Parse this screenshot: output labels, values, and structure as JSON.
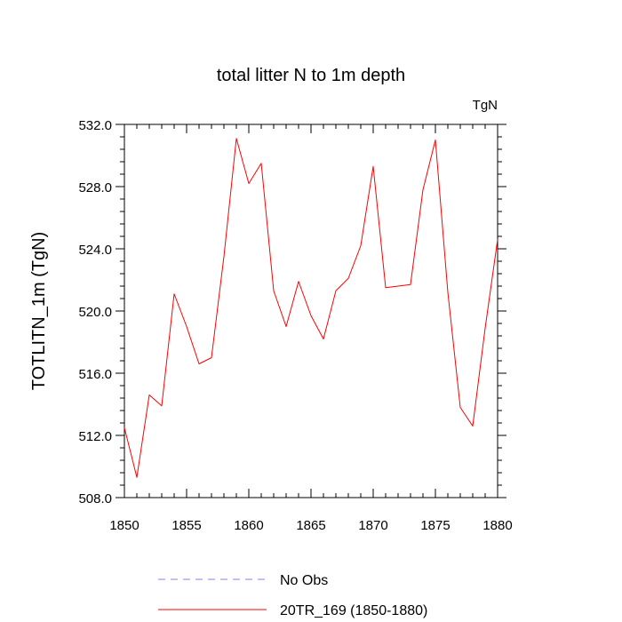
{
  "chart_data": {
    "type": "line",
    "title": "total litter N to 1m depth",
    "units": "TgN",
    "ylabel": "TOTLITN_1m  (TgN)",
    "xlabel": "",
    "xlim": [
      1850,
      1880
    ],
    "ylim": [
      508.0,
      532.0
    ],
    "xticks": [
      1850,
      1855,
      1860,
      1865,
      1870,
      1875,
      1880
    ],
    "xtick_labels": [
      "1850",
      "1855",
      "1860",
      "1865",
      "1870",
      "1875",
      "1880"
    ],
    "yticks": [
      508.0,
      512.0,
      516.0,
      520.0,
      524.0,
      528.0,
      532.0
    ],
    "ytick_labels": [
      "508.0",
      "512.0",
      "516.0",
      "520.0",
      "524.0",
      "528.0",
      "532.0"
    ],
    "x": [
      1850,
      1851,
      1852,
      1853,
      1854,
      1855,
      1856,
      1857,
      1858,
      1859,
      1860,
      1861,
      1862,
      1863,
      1864,
      1865,
      1866,
      1867,
      1868,
      1869,
      1870,
      1871,
      1872,
      1873,
      1874,
      1875,
      1876,
      1877,
      1878,
      1879,
      1880
    ],
    "series": [
      {
        "name": "20TR_169 (1850-1880)",
        "color": "#ff0000",
        "style": "solid",
        "values": [
          512.5,
          509.3,
          514.6,
          513.9,
          521.1,
          519.0,
          516.6,
          517.0,
          523.5,
          531.1,
          528.2,
          529.5,
          521.3,
          519.0,
          521.9,
          519.7,
          518.2,
          521.3,
          522.1,
          524.2,
          529.3,
          521.5,
          521.6,
          521.7,
          527.8,
          531.0,
          521.2,
          513.8,
          512.6,
          518.9,
          524.6
        ]
      }
    ],
    "legend": [
      {
        "label": "No Obs",
        "color": "#8080ff",
        "style": "dashed"
      },
      {
        "label": "20TR_169 (1850-1880)",
        "color": "#ff0000",
        "style": "solid"
      }
    ],
    "grid": false
  }
}
